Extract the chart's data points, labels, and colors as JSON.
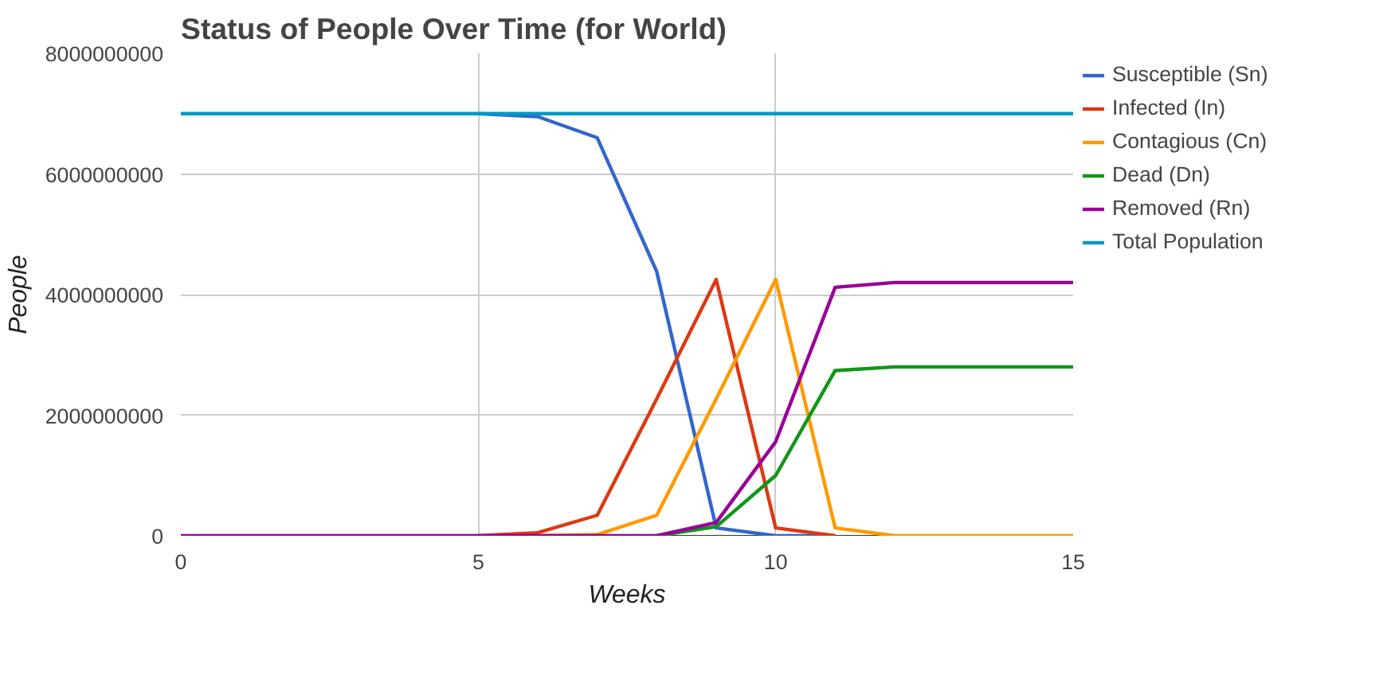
{
  "chart_data": {
    "type": "line",
    "title": "Status of People Over Time (for World)",
    "xlabel": "Weeks",
    "ylabel": "People",
    "x": [
      0,
      1,
      2,
      3,
      4,
      5,
      6,
      7,
      8,
      9,
      10,
      11,
      12,
      13,
      14,
      15
    ],
    "series": [
      {
        "name": "Susceptible (Sn)",
        "color": "#3366cc",
        "values": [
          null,
          null,
          null,
          null,
          null,
          7000000000,
          6950000000,
          6600000000,
          4380000000,
          130000000,
          0,
          0,
          null,
          null,
          null,
          null
        ]
      },
      {
        "name": "Infected (In)",
        "color": "#dc3912",
        "values": [
          null,
          null,
          null,
          null,
          null,
          0,
          50000000,
          340000000,
          2270000000,
          4250000000,
          130000000,
          0,
          null,
          null,
          null,
          null
        ]
      },
      {
        "name": "Contagious (Cn)",
        "color": "#ff9900",
        "values": [
          null,
          null,
          null,
          null,
          null,
          null,
          0,
          20000000,
          340000000,
          2270000000,
          4250000000,
          130000000,
          0,
          0,
          0,
          0
        ]
      },
      {
        "name": "Dead (Dn)",
        "color": "#109618",
        "values": [
          null,
          null,
          null,
          null,
          null,
          null,
          null,
          null,
          0,
          150000000,
          1000000000,
          2740000000,
          2800000000,
          2800000000,
          2800000000,
          2800000000
        ]
      },
      {
        "name": "Removed (Rn)",
        "color": "#990099",
        "values": [
          0,
          0,
          0,
          0,
          0,
          0,
          0,
          0,
          0,
          220000000,
          1560000000,
          4120000000,
          4200000000,
          4200000000,
          4200000000,
          4200000000
        ]
      },
      {
        "name": "Total Population",
        "color": "#0099c6",
        "values": [
          7000000000,
          7000000000,
          7000000000,
          7000000000,
          7000000000,
          7000000000,
          7000000000,
          7000000000,
          7000000000,
          7000000000,
          7000000000,
          7000000000,
          7000000000,
          7000000000,
          7000000000,
          7000000000
        ]
      }
    ],
    "xlim": [
      0,
      15
    ],
    "xticks": [
      0,
      5,
      10,
      15
    ],
    "ylim": [
      0,
      8000000000
    ],
    "yticks": [
      0,
      2000000000,
      4000000000,
      6000000000,
      8000000000
    ],
    "grid": true,
    "legend": "right",
    "marker": "none",
    "line_style": "solid"
  }
}
